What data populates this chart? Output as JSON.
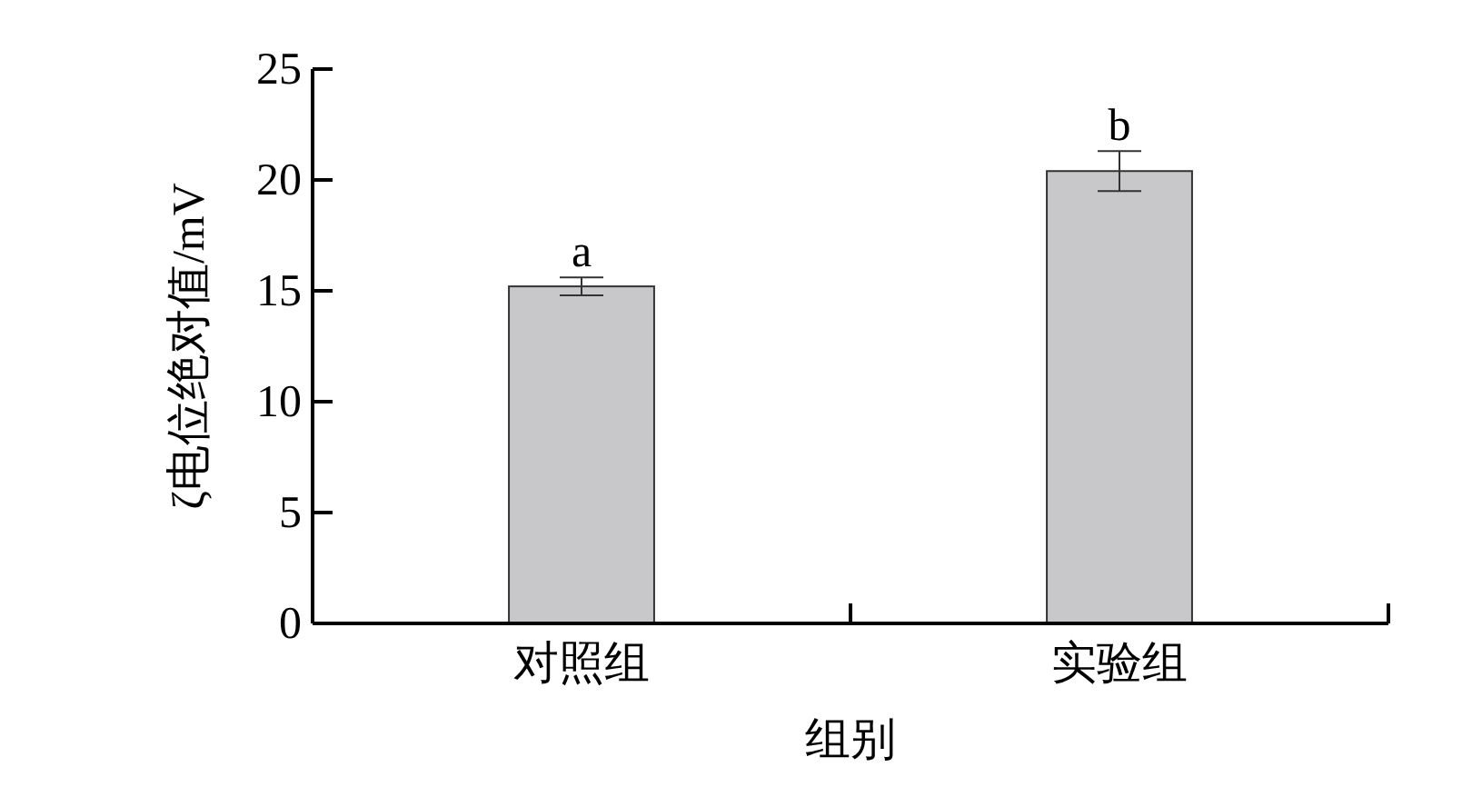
{
  "chart_data": {
    "type": "bar",
    "xlabel": "组别",
    "ylabel": "ζ电位绝对值/mV",
    "categories": [
      "对照组",
      "实验组"
    ],
    "values": [
      15.2,
      20.4
    ],
    "errors": [
      0.4,
      0.9
    ],
    "color": "#c8c8ca",
    "ylim": [
      0,
      25
    ],
    "yticks": [
      0,
      5,
      10,
      15,
      20,
      25
    ],
    "annotations": [
      {
        "text": "a",
        "x": "对照组",
        "y": 15.6
      },
      {
        "text": "b",
        "x": "实验组",
        "y": 21.3
      }
    ]
  }
}
